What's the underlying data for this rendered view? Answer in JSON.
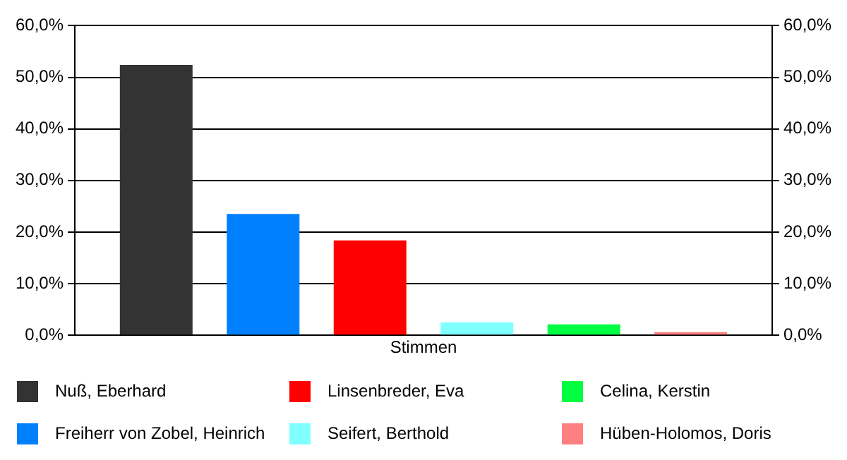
{
  "chart_data": {
    "type": "bar",
    "categories": [
      "Stimmen"
    ],
    "series": [
      {
        "name": "Nuß, Eberhard",
        "color": "#333333",
        "values": [
          52.4
        ]
      },
      {
        "name": "Freiherr von Zobel, Heinrich",
        "color": "#0080ff",
        "values": [
          23.5
        ]
      },
      {
        "name": "Linsenbreder, Eva",
        "color": "#ff0000",
        "values": [
          18.4
        ]
      },
      {
        "name": "Seifert, Berthold",
        "color": "#80ffff",
        "values": [
          2.5
        ]
      },
      {
        "name": "Celina, Kerstin",
        "color": "#00ff40",
        "values": [
          2.1
        ]
      },
      {
        "name": "Hüben-Holomos, Doris",
        "color": "#ff8080",
        "values": [
          0.6
        ]
      }
    ],
    "ylim": [
      0,
      60
    ],
    "yticks": [
      {
        "value": 0,
        "label": "0,0%"
      },
      {
        "value": 10,
        "label": "10,0%"
      },
      {
        "value": 20,
        "label": "20,0%"
      },
      {
        "value": 30,
        "label": "30,0%"
      },
      {
        "value": 40,
        "label": "40,0%"
      },
      {
        "value": 50,
        "label": "50,0%"
      },
      {
        "value": 60,
        "label": "60,0%"
      }
    ],
    "grid": "y",
    "legend": "bottom"
  }
}
